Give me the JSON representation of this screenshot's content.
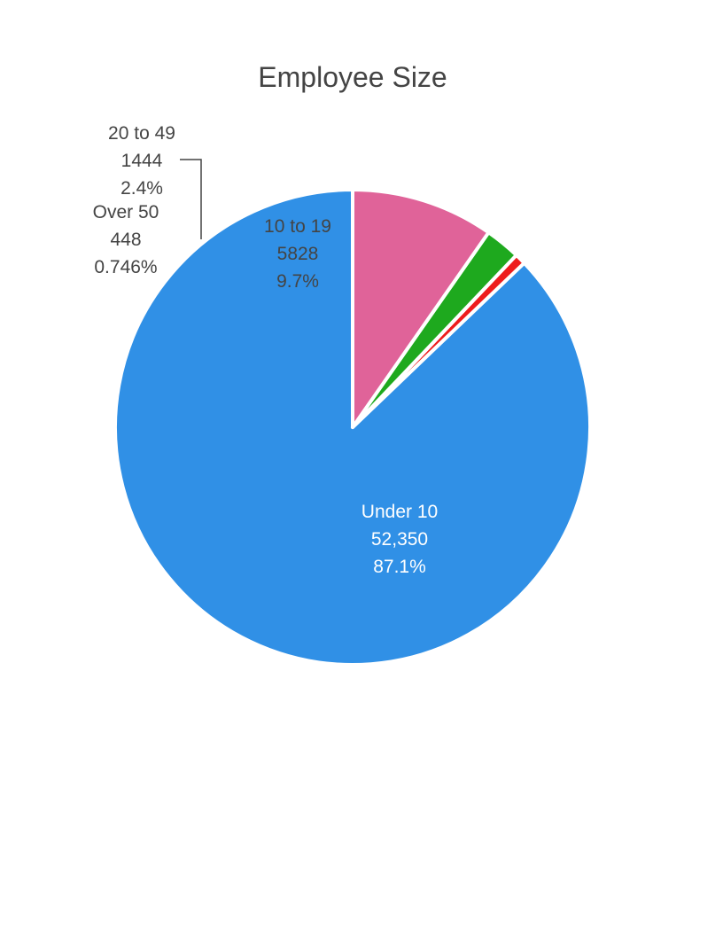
{
  "chart_data": {
    "type": "pie",
    "title": "Employee Size",
    "slices": [
      {
        "label": "Under 10",
        "value_text": "52,350",
        "percent_text": "87.1%",
        "value": 52350,
        "percent": 87.1,
        "color": "#3090e6",
        "label_color": "#ffffff"
      },
      {
        "label": "Over 50",
        "value_text": "448",
        "percent_text": "0.746%",
        "value": 448,
        "percent": 0.746,
        "color": "#ee1c1c",
        "label_color": "#444444"
      },
      {
        "label": "20 to 49",
        "value_text": "1444",
        "percent_text": "2.4%",
        "value": 1444,
        "percent": 2.4,
        "color": "#1ea91e",
        "label_color": "#444444"
      },
      {
        "label": "10 to 19",
        "value_text": "5828",
        "percent_text": "9.7%",
        "value": 5828,
        "percent": 9.7,
        "color": "#e06399",
        "label_color": "#444444"
      }
    ]
  }
}
